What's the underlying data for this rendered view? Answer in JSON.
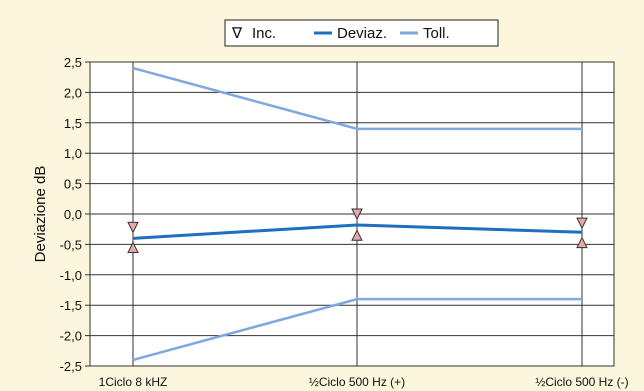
{
  "chart_data": {
    "type": "line",
    "ylabel": "Deviazione dB",
    "ylim": [
      -2.5,
      2.5
    ],
    "yticks": [
      "2,5",
      "2,0",
      "1,5",
      "1,0",
      "0,5",
      "0,0",
      "-0,5",
      "-1,0",
      "-1,5",
      "-2,0",
      "-2,5"
    ],
    "ytick_values": [
      2.5,
      2.0,
      1.5,
      1.0,
      0.5,
      0.0,
      -0.5,
      -1.0,
      -1.5,
      -2.0,
      -2.5
    ],
    "categories": [
      "1Ciclo 8 kHZ",
      "½Ciclo 500 Hz (+)",
      "½Ciclo 500 Hz (-)"
    ],
    "legend": {
      "position": "top-center",
      "entries": [
        "Inc.",
        "Deviaz.",
        "Toll."
      ]
    },
    "series": [
      {
        "name": "Deviaz.",
        "values": [
          -0.4,
          -0.18,
          -0.3
        ],
        "color": "#1f6fc0"
      },
      {
        "name": "Toll.",
        "values": [
          2.4,
          1.4,
          1.4
        ],
        "color": "#7fa8e0"
      },
      {
        "name": "Toll.",
        "values": [
          -2.4,
          -1.4,
          -1.4
        ],
        "color": "#7fa8e0"
      }
    ],
    "uncertainty": {
      "name": "Inc.",
      "upper": [
        -0.22,
        0.0,
        -0.15
      ],
      "lower": [
        -0.55,
        -0.35,
        -0.47
      ],
      "color": "#e8a6a8"
    },
    "grid": true
  }
}
